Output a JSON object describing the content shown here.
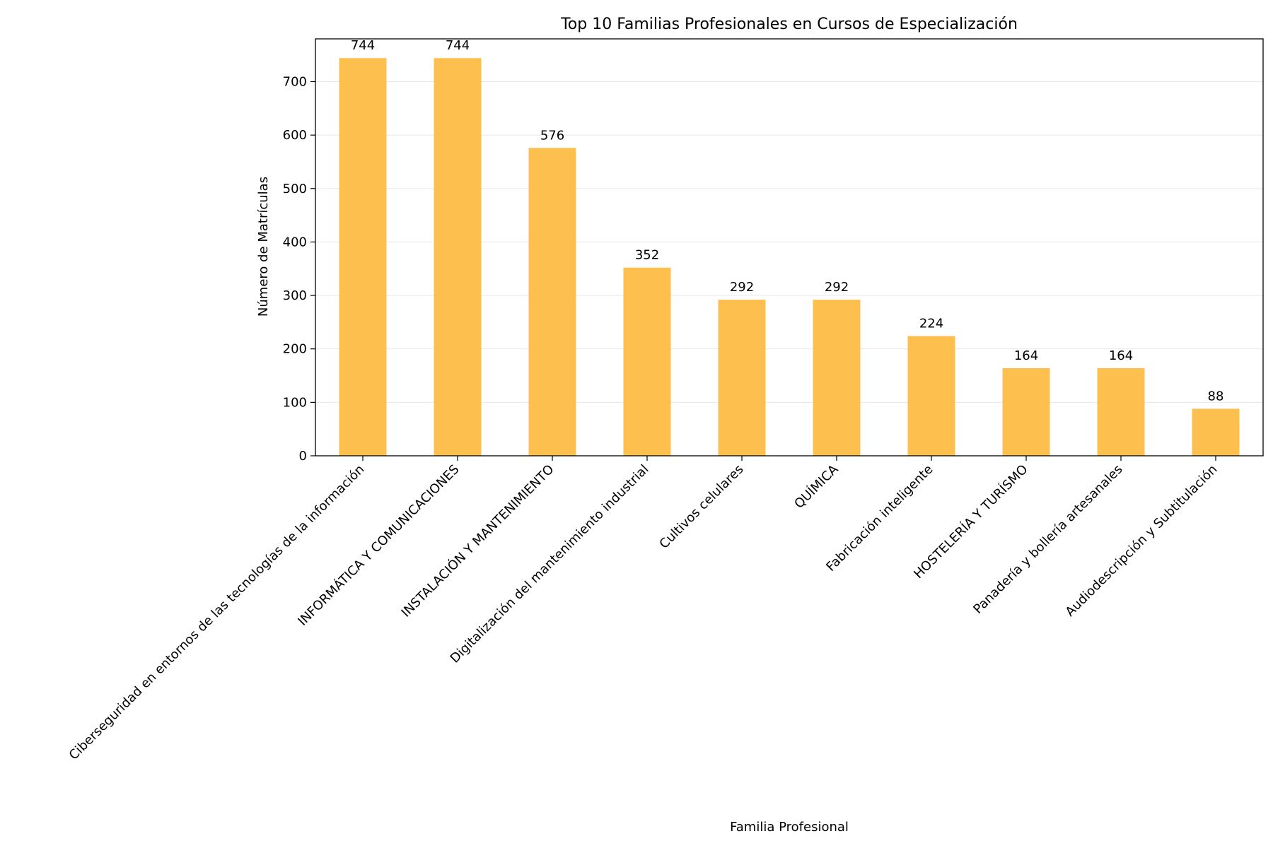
{
  "chart_data": {
    "type": "bar",
    "title": "Top 10 Familias Profesionales en Cursos de Especialización",
    "xlabel": "Familia Profesional",
    "ylabel": "Número de Matrículas",
    "categories": [
      "Ciberseguridad en entornos de las tecnologías de la información",
      "INFORMÁTICA Y COMUNICACIONES",
      "INSTALACIÓN Y MANTENIMIENTO",
      "Digitalización del mantenimiento industrial",
      "Cultivos celulares",
      "QUÍMICA",
      "Fabricación inteligente",
      "HOSTELERÍA Y TURÍSMO",
      "Panadería y bollería artesanales",
      "Audiodescripción y Subtitulación"
    ],
    "values": [
      744,
      744,
      576,
      352,
      292,
      292,
      224,
      164,
      164,
      88
    ],
    "ylim": [
      0,
      780
    ],
    "yticks": [
      0,
      100,
      200,
      300,
      400,
      500,
      600,
      700
    ],
    "grid": "y",
    "legend": "none",
    "bar_color": "#fdbf4d"
  }
}
